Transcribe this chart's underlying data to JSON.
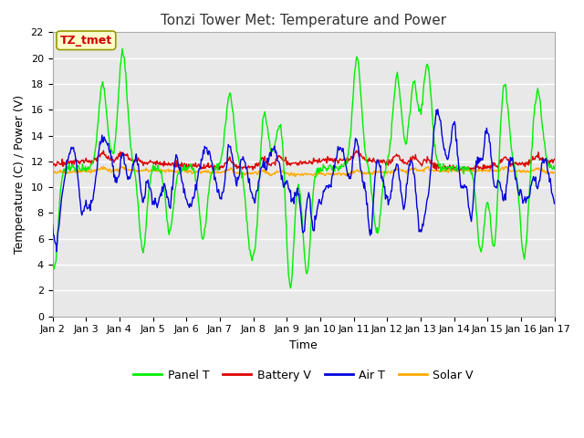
{
  "title": "Tonzi Tower Met: Temperature and Power",
  "xlabel": "Time",
  "ylabel": "Temperature (C) / Power (V)",
  "ylim": [
    0,
    22
  ],
  "yticks": [
    0,
    2,
    4,
    6,
    8,
    10,
    12,
    14,
    16,
    18,
    20,
    22
  ],
  "xtick_labels": [
    "Jan 2",
    "Jan 3",
    "Jan 4",
    "Jan 5",
    "Jan 6",
    "Jan 7",
    "Jan 8",
    "Jan 9",
    "Jan 10",
    "Jan 11",
    "Jan 12",
    "Jan 13",
    "Jan 14",
    "Jan 15",
    "Jan 16",
    "Jan 17"
  ],
  "legend_labels": [
    "Panel T",
    "Battery V",
    "Air T",
    "Solar V"
  ],
  "line_colors": [
    "#00ee00",
    "#dd0000",
    "#0000dd",
    "#ffaa00"
  ],
  "annotation_text": "TZ_tmet",
  "annotation_color": "#cc0000",
  "annotation_bg": "#ffffcc",
  "annotation_edge": "#999900",
  "fig_facecolor": "#ffffff",
  "plot_facecolor": "#e8e8e8",
  "grid_color": "#ffffff",
  "title_fontsize": 11,
  "axis_fontsize": 9,
  "tick_fontsize": 8,
  "legend_fontsize": 9
}
